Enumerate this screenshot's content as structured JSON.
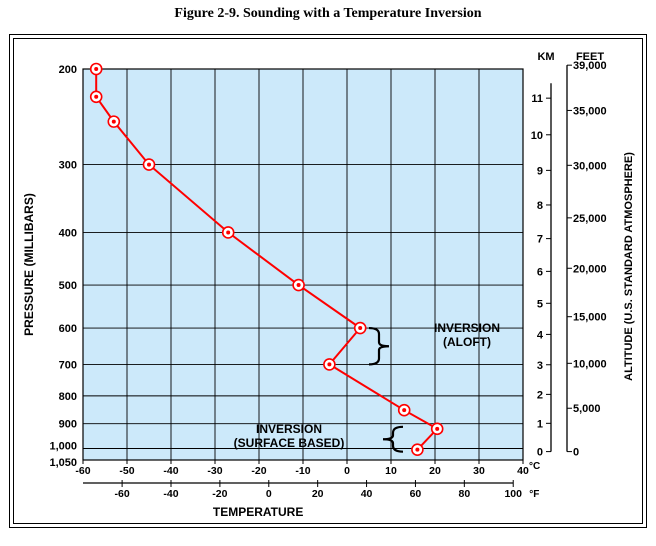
{
  "figure_title": "Figure 2-9. Sounding with a Temperature Inversion",
  "chart_data": {
    "type": "line",
    "title": "Figure 2-9. Sounding with a Temperature Inversion",
    "xlabel": "TEMPERATURE",
    "ylabel": "PRESSURE (MILLIBARS)",
    "right_ylabel": "ALTITUDE (U.S. STANDARD ATMOSPHERE)",
    "x_unit_c": "°C",
    "x_unit_f": "°F",
    "km_header": "KM",
    "feet_header": "FEET",
    "xlim_c": [
      -60,
      40
    ],
    "grid": true,
    "plot_background": "#cce9fa",
    "line_color": "#ff0000",
    "c_ticks": [
      -60,
      -50,
      -40,
      -30,
      -20,
      -10,
      0,
      10,
      20,
      30,
      40
    ],
    "c_tick_labels": [
      "-60",
      "-50",
      "-40",
      "-30",
      "-20",
      "-10",
      "0",
      "10",
      "20",
      "30",
      "40"
    ],
    "f_ticks": [
      -60,
      -40,
      -20,
      0,
      20,
      40,
      60,
      80,
      100
    ],
    "f_tick_labels": [
      "-60",
      "-40",
      "-20",
      "0",
      "20",
      "40",
      "60",
      "80",
      "100"
    ],
    "pressure_ticks": [
      200,
      300,
      400,
      500,
      600,
      700,
      800,
      900,
      1000,
      1050
    ],
    "pressure_tick_labels": [
      "200",
      "300",
      "400",
      "500",
      "600",
      "700",
      "800",
      "900",
      "1,000",
      "1,050"
    ],
    "km_ticks": [
      0,
      1,
      2,
      3,
      4,
      5,
      6,
      7,
      8,
      9,
      10,
      11
    ],
    "km_tick_labels": [
      "0",
      "1",
      "2",
      "3",
      "4",
      "5",
      "6",
      "7",
      "8",
      "9",
      "10",
      "11"
    ],
    "feet_ticks": [
      0,
      5000,
      10000,
      15000,
      20000,
      25000,
      30000,
      35000,
      39000
    ],
    "feet_tick_labels": [
      "0",
      "5,000",
      "10,000",
      "15,000",
      "20,000",
      "25,000",
      "30,000",
      "35,000",
      "39,000"
    ],
    "series": [
      {
        "temperature_c": [
          16,
          20.5,
          13,
          -4,
          3,
          -11,
          -27,
          -45,
          -53,
          -57,
          -57
        ],
        "pressure_mb": [
          1005,
          920,
          850,
          700,
          600,
          500,
          400,
          300,
          250,
          225,
          200
        ]
      }
    ],
    "annotations": [
      {
        "text": "INVERSION",
        "text2": "(ALOFT)",
        "pressure_range": [
          600,
          700
        ]
      },
      {
        "text": "INVERSION",
        "text2": "(SURFACE BASED)",
        "pressure_range": [
          920,
          1005
        ]
      }
    ]
  }
}
